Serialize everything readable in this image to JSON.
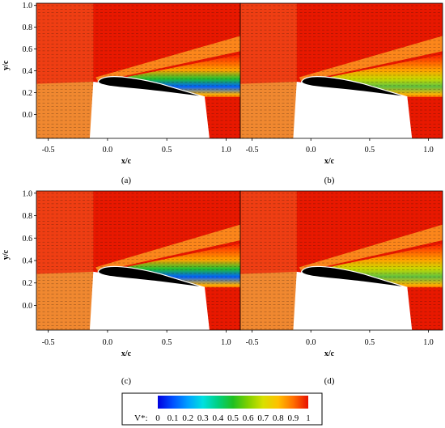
{
  "panels": [
    {
      "label": "(a)",
      "xlabel": "x/c",
      "ylabel": "y/c",
      "show_yaxis": true,
      "xticks": [
        "-0.5",
        "0.0",
        "0.5",
        "1.0"
      ],
      "yticks": [
        "1.0",
        "0.8",
        "0.6",
        "0.4",
        "0.2",
        "0.0"
      ],
      "wake_strength": 1.0
    },
    {
      "label": "(b)",
      "xlabel": "x/c",
      "ylabel": "",
      "show_yaxis": false,
      "xticks": [
        "-0.5",
        "0.0",
        "0.5",
        "1.0"
      ],
      "yticks": [],
      "wake_strength": 0.45
    },
    {
      "label": "(c)",
      "xlabel": "x/c",
      "ylabel": "y/c",
      "show_yaxis": true,
      "xticks": [
        "-0.5",
        "0.0",
        "0.5",
        "1.0"
      ],
      "yticks": [
        "1.0",
        "0.8",
        "0.6",
        "0.4",
        "0.2",
        "0.0"
      ],
      "wake_strength": 0.85
    },
    {
      "label": "(d)",
      "xlabel": "x/c",
      "ylabel": "",
      "show_yaxis": false,
      "xticks": [
        "-0.5",
        "0.0",
        "0.5",
        "1.0"
      ],
      "yticks": [],
      "wake_strength": 0.35
    }
  ],
  "colorbar": {
    "label": "V*:",
    "ticks": [
      "0",
      "0.1",
      "0.2",
      "0.3",
      "0.4",
      "0.5",
      "0.6",
      "0.7",
      "0.8",
      "0.9",
      "1"
    ],
    "colors": [
      "#0000e0",
      "#0050ff",
      "#00a0ff",
      "#00e0e0",
      "#00d080",
      "#20c020",
      "#80d000",
      "#d8e000",
      "#ffc000",
      "#ff7000",
      "#e81000"
    ]
  },
  "chart_data": {
    "type": "heatmap",
    "quantity": "V*",
    "xlim": [
      -0.6,
      1.12
    ],
    "ylim": [
      -0.22,
      1.02
    ],
    "colorbar_range": [
      0,
      1
    ],
    "panels": [
      "(a)",
      "(b)",
      "(c)",
      "(d)"
    ]
  }
}
